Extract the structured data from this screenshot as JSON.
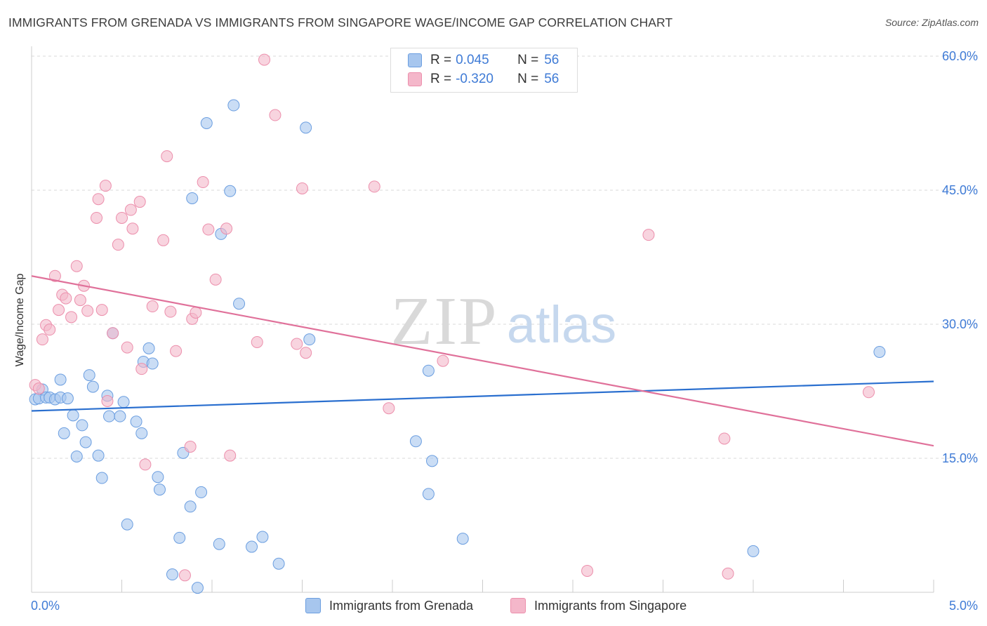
{
  "title": "IMMIGRANTS FROM GRENADA VS IMMIGRANTS FROM SINGAPORE WAGE/INCOME GAP CORRELATION CHART",
  "source": "Source: ZipAtlas.com",
  "watermark": {
    "zip": "ZIP",
    "atlas": "atlas"
  },
  "legend": {
    "rows": [
      {
        "r_label": "R =",
        "r_value": "0.045",
        "n_label": "N =",
        "n_value": "56",
        "color": "#a7c6ee"
      },
      {
        "r_label": "R =",
        "r_value": "-0.320",
        "n_label": "N =",
        "n_value": "56",
        "color": "#f4b7ca"
      }
    ]
  },
  "bottom_legend": [
    {
      "label": "Immigrants from Grenada",
      "color": "#a7c6ee"
    },
    {
      "label": "Immigrants from Singapore",
      "color": "#f4b7ca"
    }
  ],
  "chart_data": {
    "type": "scatter",
    "ylabel": "Wage/Income Gap",
    "xlim": [
      0,
      5
    ],
    "ylim": [
      0,
      60
    ],
    "x_tick_labels": [
      {
        "value": 0,
        "label": "0.0%"
      },
      {
        "value": 5,
        "label": "5.0%"
      }
    ],
    "y_tick_labels": [
      {
        "value": 15,
        "label": "15.0%"
      },
      {
        "value": 30,
        "label": "30.0%"
      },
      {
        "value": 45,
        "label": "45.0%"
      },
      {
        "value": 60,
        "label": "60.0%"
      }
    ],
    "series": [
      {
        "name": "Immigrants from Grenada",
        "color": "#a7c6ee",
        "edge": "#6b9ee0",
        "line_color": "#2a6fcf",
        "trend": {
          "x": [
            0,
            5
          ],
          "y": [
            20.3,
            23.6
          ]
        },
        "points": [
          [
            0.02,
            21.6
          ],
          [
            0.04,
            21.7
          ],
          [
            0.06,
            22.7
          ],
          [
            0.08,
            21.8
          ],
          [
            0.1,
            21.8
          ],
          [
            0.13,
            21.6
          ],
          [
            0.16,
            21.8
          ],
          [
            0.16,
            23.8
          ],
          [
            0.18,
            17.8
          ],
          [
            0.2,
            21.7
          ],
          [
            0.23,
            19.8
          ],
          [
            0.25,
            15.2
          ],
          [
            0.28,
            18.7
          ],
          [
            0.3,
            16.8
          ],
          [
            0.32,
            24.3
          ],
          [
            0.34,
            23.0
          ],
          [
            0.37,
            15.3
          ],
          [
            0.39,
            12.8
          ],
          [
            0.42,
            22.0
          ],
          [
            0.43,
            19.7
          ],
          [
            0.45,
            29.0
          ],
          [
            0.49,
            19.7
          ],
          [
            0.51,
            21.3
          ],
          [
            0.53,
            7.6
          ],
          [
            0.58,
            19.1
          ],
          [
            0.61,
            17.8
          ],
          [
            0.62,
            25.8
          ],
          [
            0.65,
            27.3
          ],
          [
            0.67,
            25.6
          ],
          [
            0.7,
            12.9
          ],
          [
            0.71,
            11.5
          ],
          [
            0.78,
            2.0
          ],
          [
            0.82,
            6.1
          ],
          [
            0.84,
            15.6
          ],
          [
            0.88,
            9.6
          ],
          [
            0.89,
            44.1
          ],
          [
            0.92,
            0.5
          ],
          [
            0.94,
            11.2
          ],
          [
            0.97,
            52.5
          ],
          [
            1.04,
            5.4
          ],
          [
            1.05,
            40.1
          ],
          [
            1.1,
            44.9
          ],
          [
            1.12,
            54.5
          ],
          [
            1.15,
            32.3
          ],
          [
            1.22,
            5.1
          ],
          [
            1.28,
            6.2
          ],
          [
            1.37,
            3.2
          ],
          [
            1.52,
            52.0
          ],
          [
            1.54,
            28.3
          ],
          [
            2.13,
            16.9
          ],
          [
            2.2,
            11.0
          ],
          [
            2.22,
            14.7
          ],
          [
            2.2,
            24.8
          ],
          [
            2.39,
            6.0
          ],
          [
            4.0,
            4.6
          ],
          [
            4.7,
            26.9
          ]
        ]
      },
      {
        "name": "Immigrants from Singapore",
        "color": "#f4b7ca",
        "edge": "#ec8fac",
        "line_color": "#e0719a",
        "trend": {
          "x": [
            0,
            5
          ],
          "y": [
            35.4,
            16.4
          ]
        },
        "points": [
          [
            0.02,
            23.2
          ],
          [
            0.04,
            22.8
          ],
          [
            0.06,
            28.3
          ],
          [
            0.08,
            29.9
          ],
          [
            0.1,
            29.4
          ],
          [
            0.13,
            35.4
          ],
          [
            0.15,
            31.6
          ],
          [
            0.17,
            33.3
          ],
          [
            0.19,
            32.9
          ],
          [
            0.22,
            30.8
          ],
          [
            0.25,
            36.5
          ],
          [
            0.27,
            32.7
          ],
          [
            0.29,
            34.3
          ],
          [
            0.31,
            31.5
          ],
          [
            0.36,
            41.9
          ],
          [
            0.37,
            44.0
          ],
          [
            0.39,
            31.6
          ],
          [
            0.41,
            45.5
          ],
          [
            0.42,
            21.4
          ],
          [
            0.45,
            29.0
          ],
          [
            0.48,
            38.9
          ],
          [
            0.5,
            41.9
          ],
          [
            0.53,
            27.4
          ],
          [
            0.55,
            42.8
          ],
          [
            0.56,
            40.7
          ],
          [
            0.6,
            43.7
          ],
          [
            0.61,
            25.0
          ],
          [
            0.63,
            14.3
          ],
          [
            0.67,
            32.0
          ],
          [
            0.73,
            39.4
          ],
          [
            0.75,
            48.8
          ],
          [
            0.77,
            31.4
          ],
          [
            0.8,
            27.0
          ],
          [
            0.85,
            1.9
          ],
          [
            0.88,
            16.3
          ],
          [
            0.89,
            30.6
          ],
          [
            0.91,
            31.3
          ],
          [
            0.95,
            45.9
          ],
          [
            0.98,
            40.6
          ],
          [
            1.02,
            35.0
          ],
          [
            1.08,
            40.7
          ],
          [
            1.1,
            15.3
          ],
          [
            1.25,
            28.0
          ],
          [
            1.29,
            59.6
          ],
          [
            1.35,
            53.4
          ],
          [
            1.47,
            27.8
          ],
          [
            1.5,
            45.2
          ],
          [
            1.52,
            26.8
          ],
          [
            1.9,
            45.4
          ],
          [
            1.98,
            20.6
          ],
          [
            2.28,
            25.9
          ],
          [
            3.08,
            2.4
          ],
          [
            3.42,
            40.0
          ],
          [
            3.84,
            17.2
          ],
          [
            3.86,
            2.1
          ],
          [
            4.64,
            22.4
          ]
        ]
      }
    ]
  }
}
